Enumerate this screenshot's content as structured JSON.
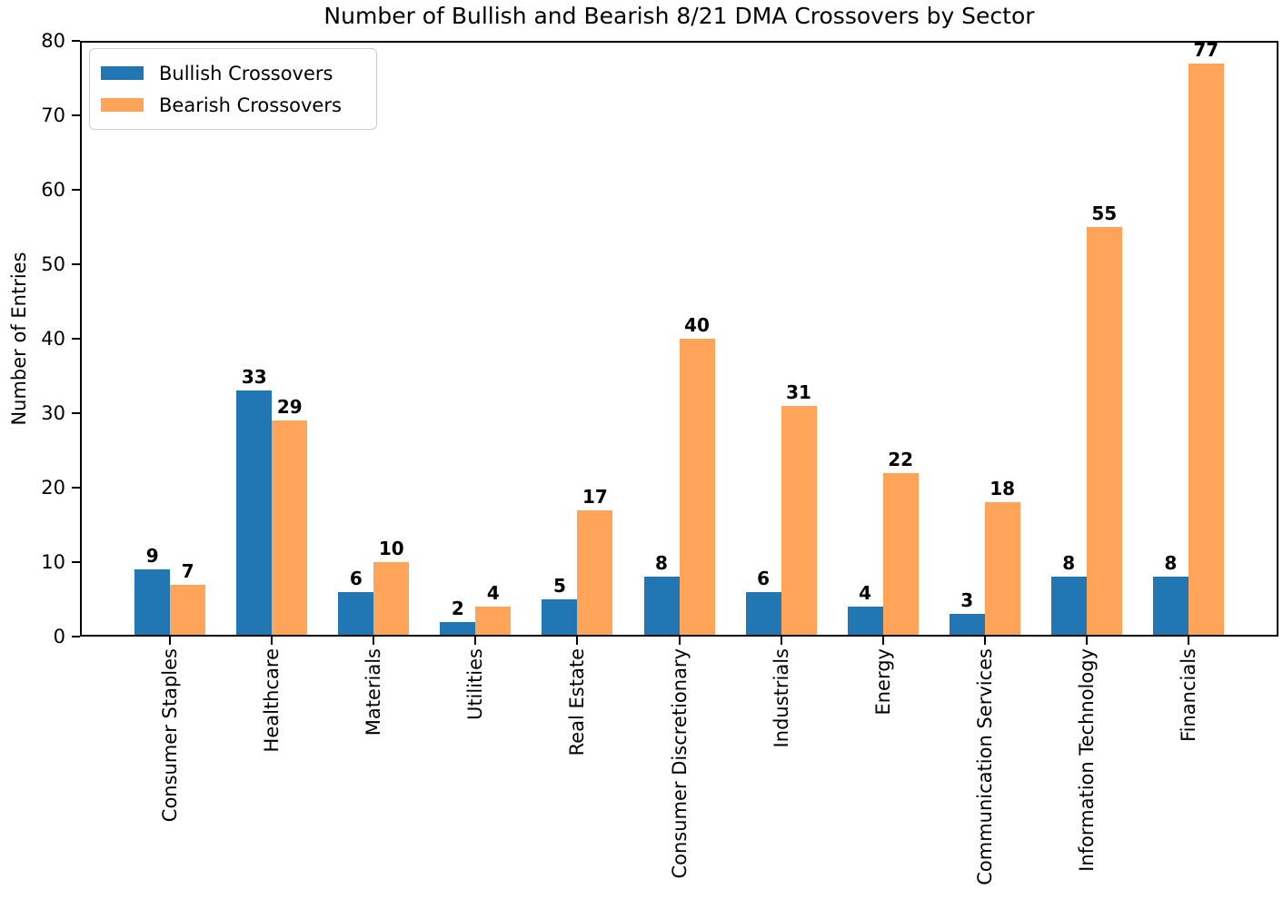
{
  "chart_data": {
    "type": "bar",
    "title": "Number of Bullish and Bearish 8/21 DMA Crossovers by Sector",
    "xlabel": "",
    "ylabel": "Number of Entries",
    "categories": [
      "Consumer Staples",
      "Healthcare",
      "Materials",
      "Utilities",
      "Real Estate",
      "Consumer Discretionary",
      "Industrials",
      "Energy",
      "Communication Services",
      "Information Technology",
      "Financials"
    ],
    "series": [
      {
        "name": "Bullish Crossovers",
        "color": "#2077b4",
        "values": [
          9,
          33,
          6,
          2,
          5,
          8,
          6,
          4,
          3,
          8,
          8
        ]
      },
      {
        "name": "Bearish Crossovers",
        "color": "#ffa458",
        "values": [
          7,
          29,
          10,
          4,
          17,
          40,
          31,
          22,
          18,
          55,
          77
        ]
      }
    ],
    "ylim": [
      0,
      80
    ],
    "yticks": [
      0,
      10,
      20,
      30,
      40,
      50,
      60,
      70,
      80
    ],
    "bar_value_labels": true,
    "legend_position": "upper left",
    "grid": false,
    "x_tick_rotation_deg": 90
  }
}
